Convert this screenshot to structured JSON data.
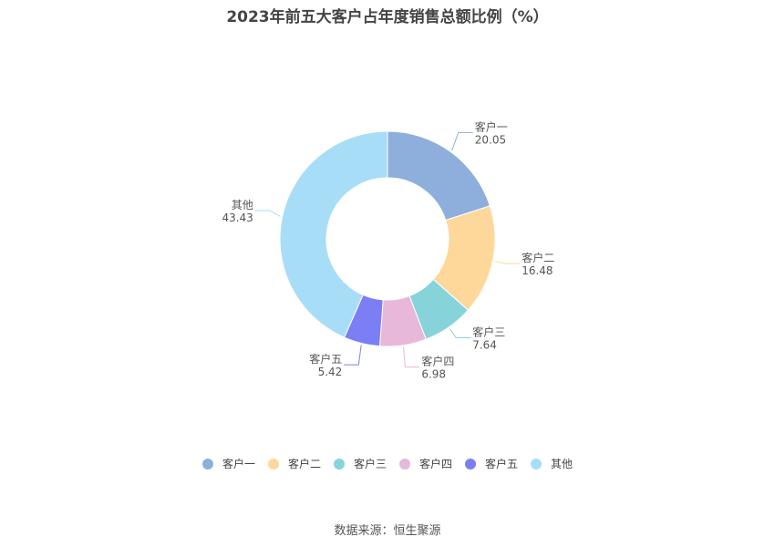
{
  "chart_data": {
    "type": "pie",
    "title": "2023年前五大客户占年度销售总额比例（%）",
    "categories": [
      "客户一",
      "客户二",
      "客户三",
      "客户四",
      "客户五",
      "其他"
    ],
    "values": [
      20.05,
      16.48,
      7.64,
      6.98,
      5.42,
      43.43
    ],
    "value_labels": [
      "20.05",
      "16.48",
      "7.64",
      "6.98",
      "5.42",
      "43.43"
    ],
    "colors": [
      "#8eaedb",
      "#fdd89a",
      "#86d4da",
      "#e8b8da",
      "#7b7ef5",
      "#a8ddf7"
    ],
    "donut": true,
    "legend_position": "bottom"
  },
  "source": "数据来源：恒生聚源"
}
